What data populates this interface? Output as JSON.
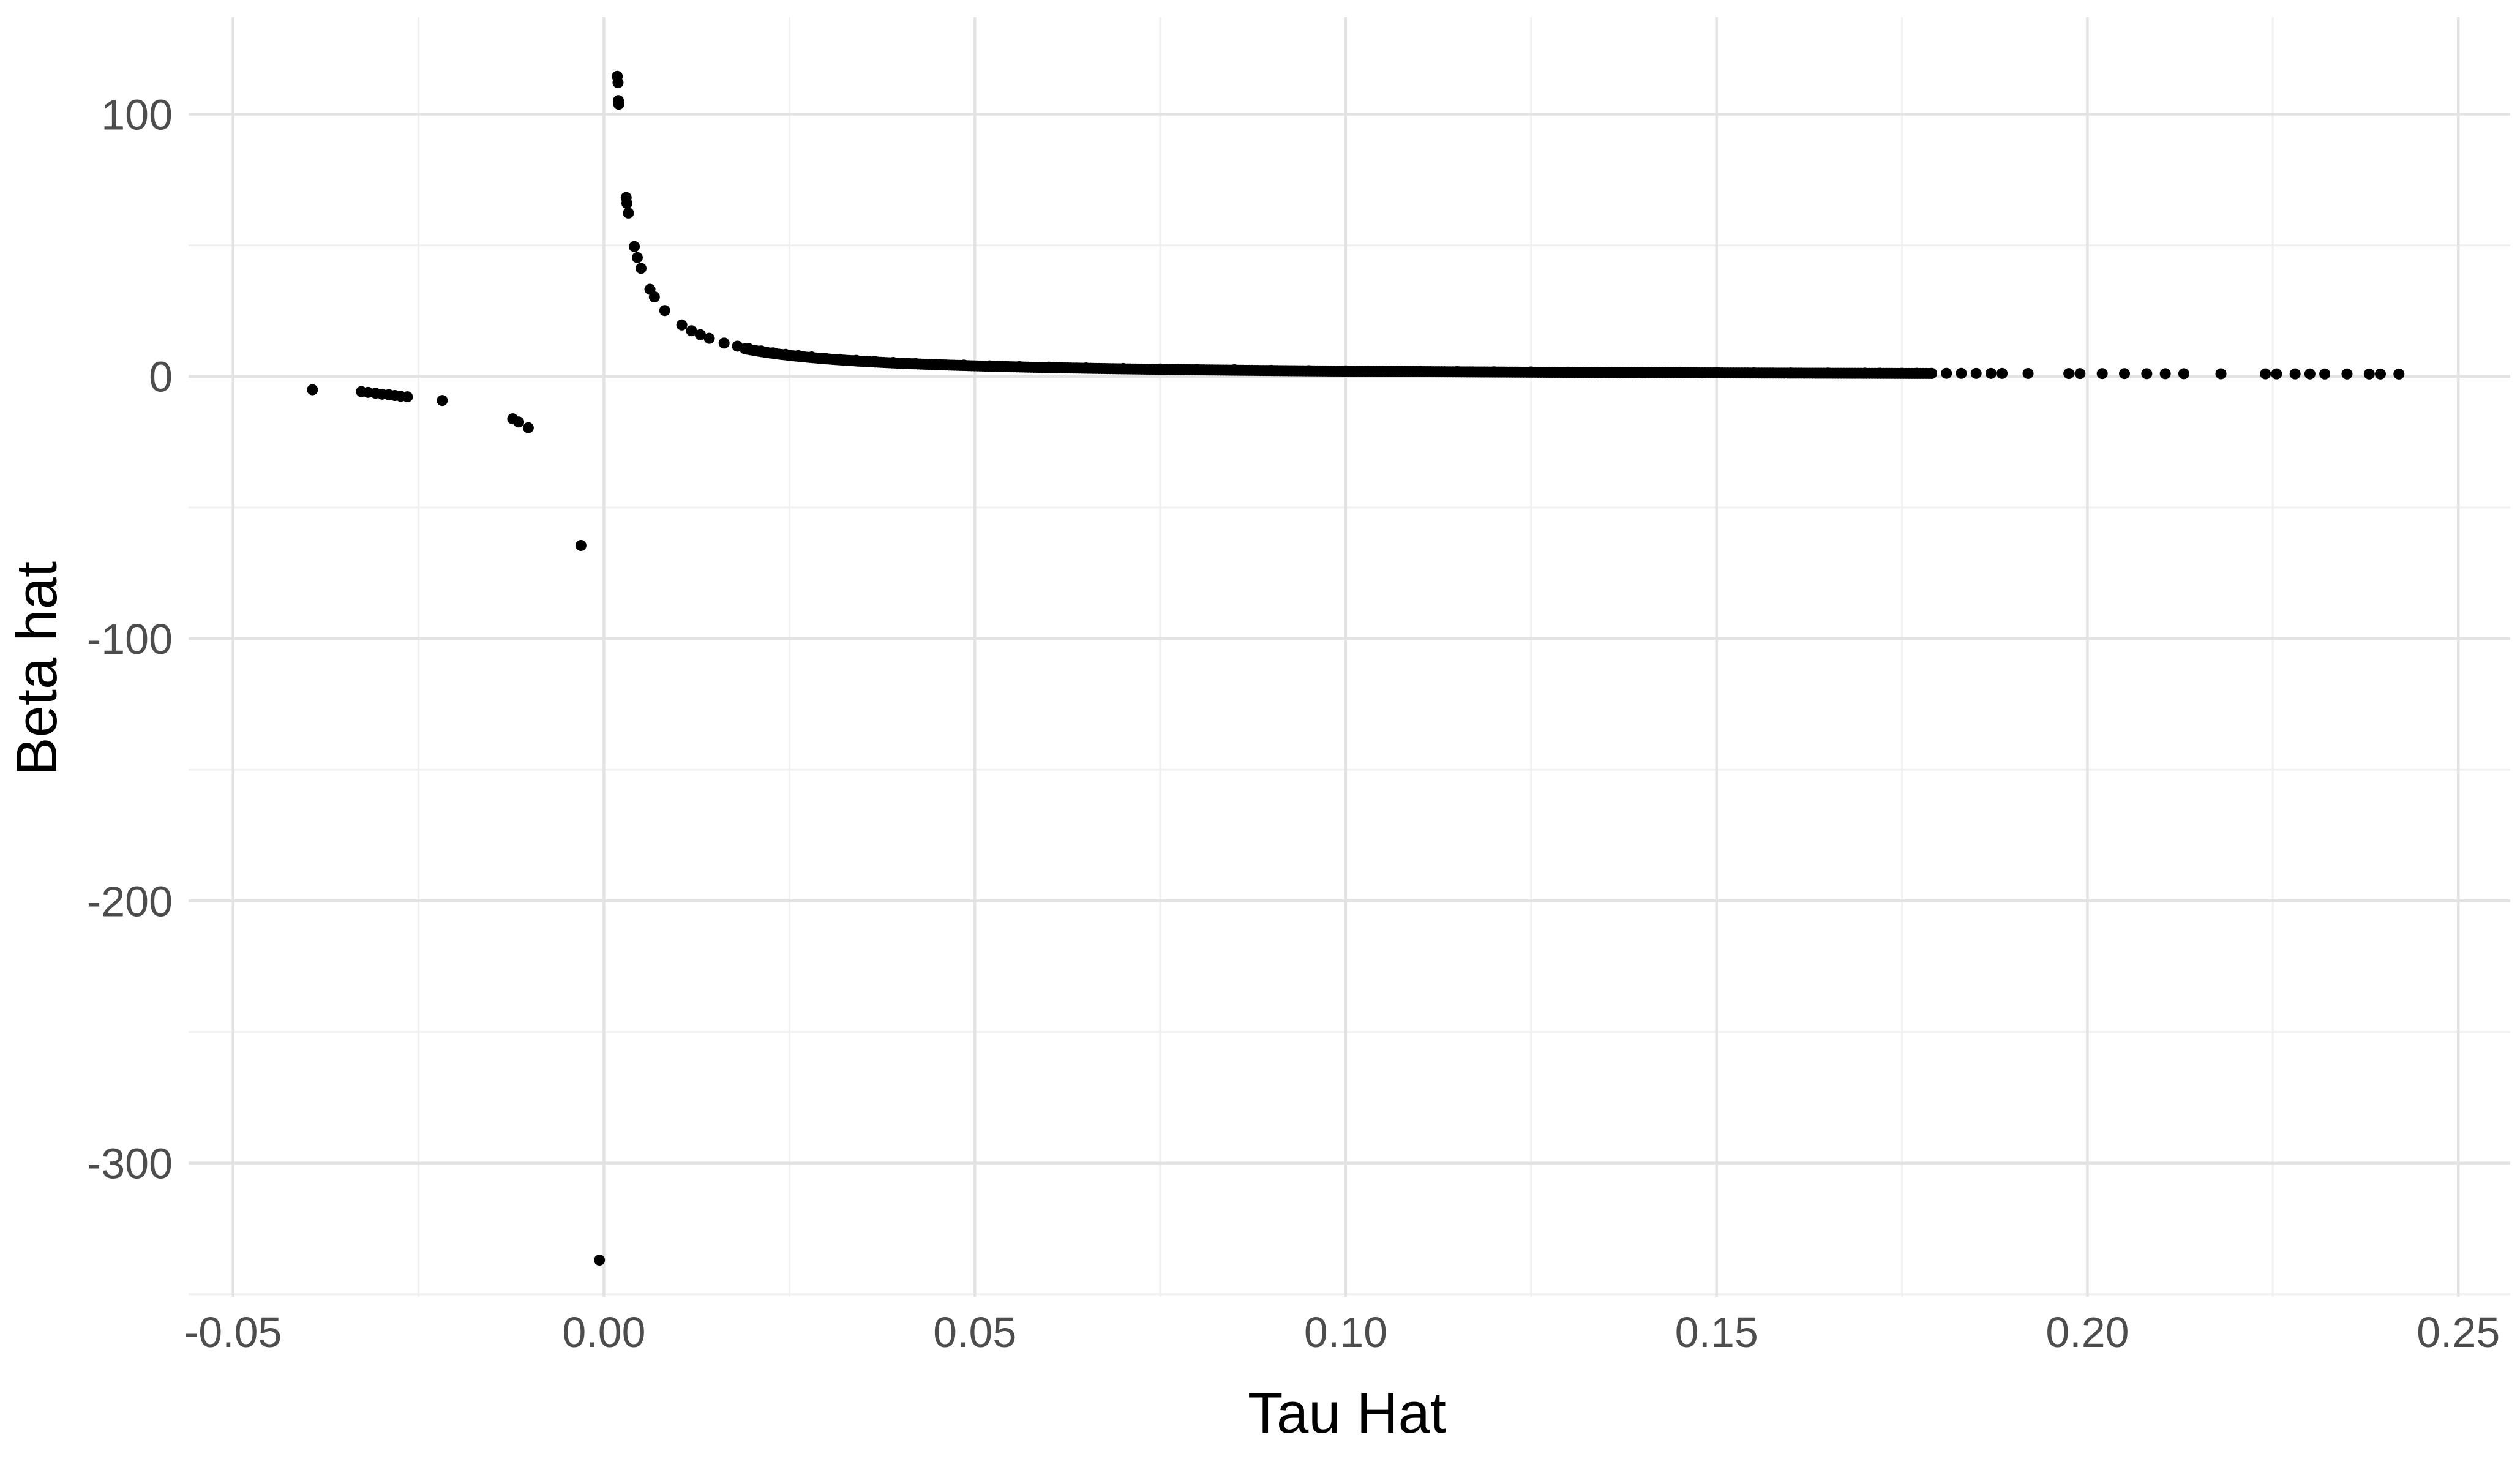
{
  "chart_data": {
    "type": "scatter",
    "title": "",
    "xlabel": "Tau Hat",
    "ylabel": "Beta hat",
    "xlim": [
      -0.056,
      0.257
    ],
    "ylim": [
      -351,
      137
    ],
    "x_ticks": [
      -0.05,
      0.0,
      0.05,
      0.1,
      0.15,
      0.2,
      0.25
    ],
    "x_tick_labels": [
      "-0.05",
      "0.00",
      "0.05",
      "0.10",
      "0.15",
      "0.20",
      "0.25"
    ],
    "y_ticks": [
      -300,
      -200,
      -100,
      0,
      100
    ],
    "y_tick_labels": [
      "-300",
      "-200",
      "-100",
      "0",
      "100"
    ],
    "grid": true,
    "legend": "none",
    "point_color": "#000000",
    "grid_color": "#e3e3e3",
    "background": "#ffffff",
    "series": [
      {
        "points": [
          [
            -0.0393,
            -5.1
          ],
          [
            -0.0327,
            -5.8
          ],
          [
            -0.0318,
            -6.1
          ],
          [
            -0.0308,
            -6.4
          ],
          [
            -0.0299,
            -6.8
          ],
          [
            -0.029,
            -7.0
          ],
          [
            -0.0282,
            -7.3
          ],
          [
            -0.0274,
            -7.6
          ],
          [
            -0.0265,
            -7.8
          ],
          [
            -0.0218,
            -9.2
          ],
          [
            -0.0123,
            -16.2
          ],
          [
            -0.0115,
            -17.4
          ],
          [
            -0.0102,
            -19.6
          ],
          [
            -0.0031,
            -64.5
          ],
          [
            -0.0006,
            -337.0
          ],
          [
            0.0018,
            114.4
          ],
          [
            0.0019,
            112.0
          ],
          [
            0.00195,
            105.2
          ],
          [
            0.002,
            103.8
          ],
          [
            0.003,
            68.2
          ],
          [
            0.0031,
            66.0
          ],
          [
            0.0033,
            62.3
          ],
          [
            0.0041,
            49.5
          ],
          [
            0.0045,
            45.3
          ],
          [
            0.005,
            41.2
          ],
          [
            0.0062,
            33.2
          ],
          [
            0.0068,
            30.3
          ],
          [
            0.0082,
            25.1
          ],
          [
            0.0105,
            19.6
          ],
          [
            0.0118,
            17.4
          ],
          [
            0.013,
            15.9
          ],
          [
            0.0142,
            14.5
          ],
          [
            0.0162,
            12.7
          ],
          [
            0.018,
            11.5
          ],
          [
            0.0195,
            10.6
          ],
          [
            0.0212,
            9.7
          ],
          [
            0.0228,
            9.0
          ],
          [
            0.0245,
            8.4
          ],
          [
            0.0262,
            7.9
          ],
          [
            0.028,
            7.4
          ],
          [
            0.0298,
            6.9
          ],
          [
            0.0318,
            6.5
          ],
          [
            0.034,
            6.1
          ],
          [
            0.0365,
            5.7
          ],
          [
            0.039,
            5.3
          ],
          [
            0.042,
            4.9
          ],
          [
            0.045,
            4.6
          ],
          [
            0.0485,
            4.3
          ],
          [
            0.052,
            4.0
          ],
          [
            0.056,
            3.7
          ],
          [
            0.06,
            3.5
          ],
          [
            0.065,
            3.2
          ],
          [
            0.07,
            3.0
          ],
          [
            0.075,
            2.8
          ],
          [
            0.08,
            2.6
          ],
          [
            0.085,
            2.5
          ],
          [
            0.09,
            2.3
          ],
          [
            0.095,
            2.2
          ],
          [
            0.1,
            2.1
          ],
          [
            0.105,
            2.0
          ],
          [
            0.11,
            1.9
          ],
          [
            0.115,
            1.8
          ],
          [
            0.12,
            1.75
          ],
          [
            0.125,
            1.7
          ],
          [
            0.13,
            1.6
          ],
          [
            0.135,
            1.55
          ],
          [
            0.14,
            1.5
          ],
          [
            0.145,
            1.45
          ],
          [
            0.15,
            1.4
          ],
          [
            0.155,
            1.35
          ],
          [
            0.16,
            1.3
          ],
          [
            0.165,
            1.27
          ],
          [
            0.17,
            1.24
          ],
          [
            0.172,
            1.22
          ],
          [
            0.175,
            1.2
          ],
          [
            0.177,
            1.19
          ],
          [
            0.179,
            1.18
          ],
          [
            0.181,
            1.17
          ],
          [
            0.183,
            1.16
          ],
          [
            0.185,
            1.15
          ],
          [
            0.187,
            1.14
          ],
          [
            0.1885,
            1.13
          ],
          [
            0.192,
            1.11
          ],
          [
            0.1975,
            1.08
          ],
          [
            0.199,
            1.07
          ],
          [
            0.202,
            1.06
          ],
          [
            0.205,
            1.05
          ],
          [
            0.208,
            1.03
          ],
          [
            0.2105,
            1.02
          ],
          [
            0.213,
            1.01
          ],
          [
            0.218,
            0.99
          ],
          [
            0.224,
            0.97
          ],
          [
            0.2255,
            0.96
          ],
          [
            0.228,
            0.95
          ],
          [
            0.23,
            0.94
          ],
          [
            0.232,
            0.93
          ],
          [
            0.235,
            0.92
          ],
          [
            0.238,
            0.91
          ],
          [
            0.2395,
            0.905
          ],
          [
            0.242,
            0.9
          ]
        ],
        "dense_ranges": [
          {
            "x_from": 0.019,
            "x_to": 0.179,
            "count": 420,
            "relation": "beta ≈ 0.2 / tau"
          }
        ]
      }
    ]
  }
}
